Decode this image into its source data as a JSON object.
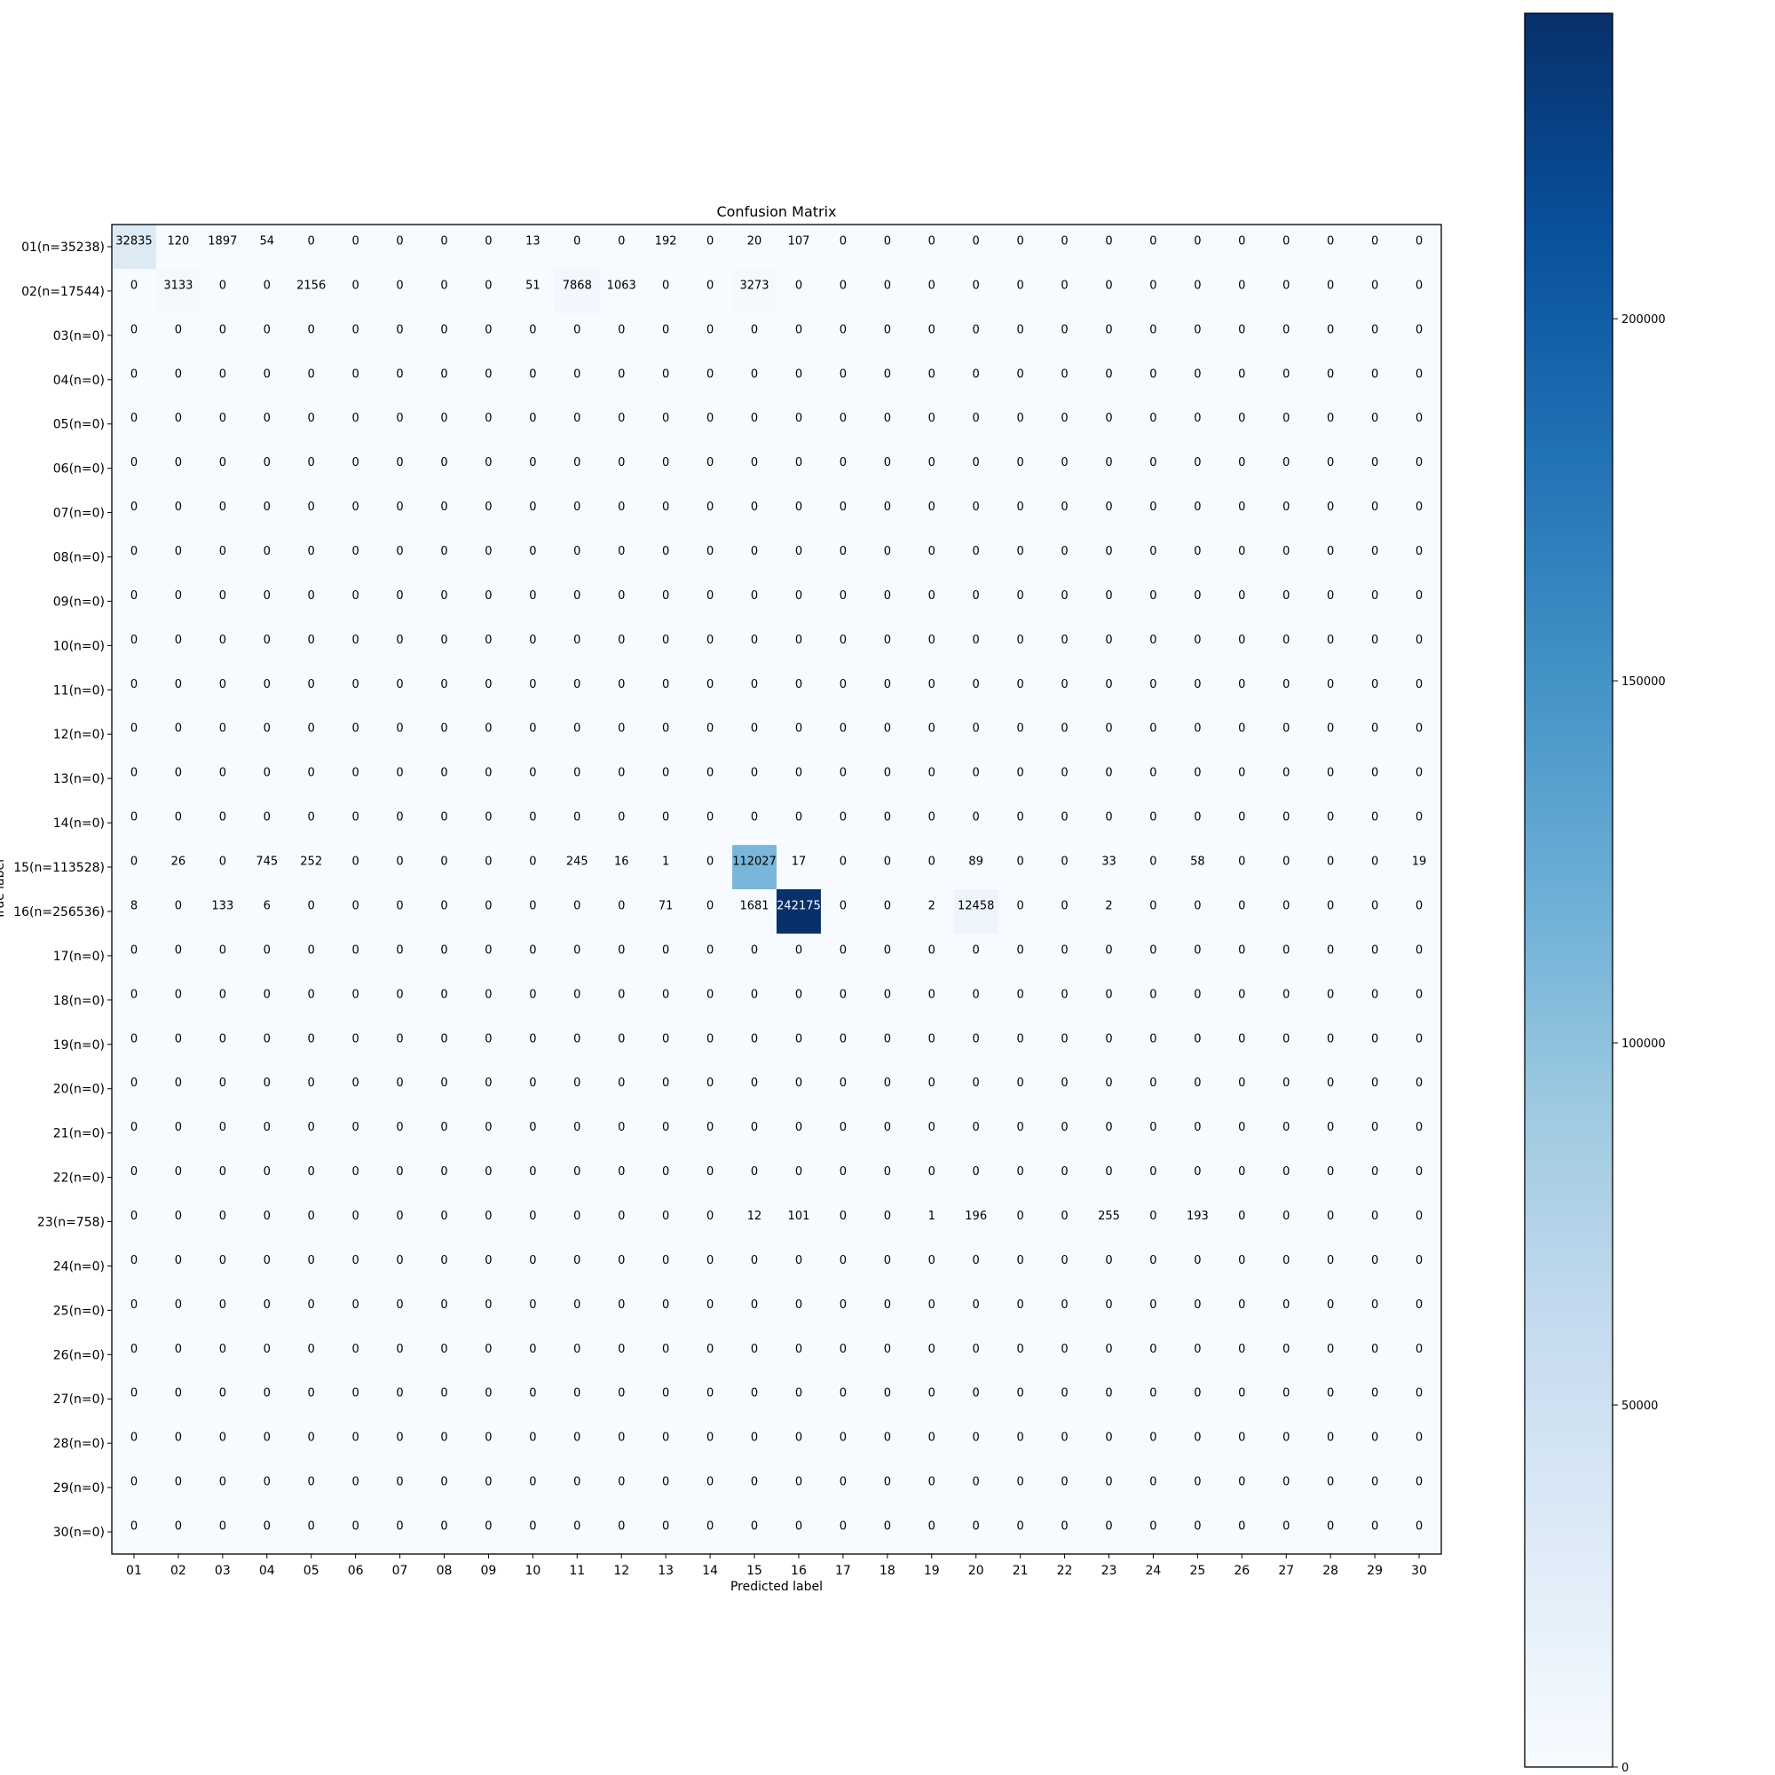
{
  "chart_data": {
    "type": "heatmap",
    "title": "Confusion Matrix",
    "xlabel": "Predicted label",
    "ylabel": "True label",
    "row_labels": [
      "01(n=35238)",
      "02(n=17544)",
      "03(n=0)",
      "04(n=0)",
      "05(n=0)",
      "06(n=0)",
      "07(n=0)",
      "08(n=0)",
      "09(n=0)",
      "10(n=0)",
      "11(n=0)",
      "12(n=0)",
      "13(n=0)",
      "14(n=0)",
      "15(n=113528)",
      "16(n=256536)",
      "17(n=0)",
      "18(n=0)",
      "19(n=0)",
      "20(n=0)",
      "21(n=0)",
      "22(n=0)",
      "23(n=758)",
      "24(n=0)",
      "25(n=0)",
      "26(n=0)",
      "27(n=0)",
      "28(n=0)",
      "29(n=0)",
      "30(n=0)"
    ],
    "col_labels": [
      "01",
      "02",
      "03",
      "04",
      "05",
      "06",
      "07",
      "08",
      "09",
      "10",
      "11",
      "12",
      "13",
      "14",
      "15",
      "16",
      "17",
      "18",
      "19",
      "20",
      "21",
      "22",
      "23",
      "24",
      "25",
      "26",
      "27",
      "28",
      "29",
      "30"
    ],
    "nonzero_cells": [
      [
        0,
        0,
        32835
      ],
      [
        0,
        1,
        120
      ],
      [
        0,
        2,
        1897
      ],
      [
        0,
        3,
        54
      ],
      [
        0,
        9,
        13
      ],
      [
        0,
        12,
        192
      ],
      [
        0,
        14,
        20
      ],
      [
        0,
        15,
        107
      ],
      [
        1,
        1,
        3133
      ],
      [
        1,
        4,
        2156
      ],
      [
        1,
        9,
        51
      ],
      [
        1,
        10,
        7868
      ],
      [
        1,
        11,
        1063
      ],
      [
        1,
        14,
        3273
      ],
      [
        14,
        1,
        26
      ],
      [
        14,
        3,
        745
      ],
      [
        14,
        4,
        252
      ],
      [
        14,
        10,
        245
      ],
      [
        14,
        11,
        16
      ],
      [
        14,
        12,
        1
      ],
      [
        14,
        14,
        112027
      ],
      [
        14,
        15,
        17
      ],
      [
        14,
        19,
        89
      ],
      [
        14,
        22,
        33
      ],
      [
        14,
        24,
        58
      ],
      [
        14,
        29,
        19
      ],
      [
        15,
        0,
        8
      ],
      [
        15,
        2,
        133
      ],
      [
        15,
        3,
        6
      ],
      [
        15,
        12,
        71
      ],
      [
        15,
        14,
        1681
      ],
      [
        15,
        15,
        242175
      ],
      [
        15,
        18,
        2
      ],
      [
        15,
        19,
        12458
      ],
      [
        15,
        22,
        2
      ],
      [
        22,
        14,
        12
      ],
      [
        22,
        15,
        101
      ],
      [
        22,
        18,
        1
      ],
      [
        22,
        19,
        196
      ],
      [
        22,
        22,
        255
      ],
      [
        22,
        24,
        193
      ]
    ],
    "colorbar": {
      "colormap": "Blues",
      "range": [
        0,
        242175
      ],
      "ticks": [
        0,
        50000,
        100000,
        150000,
        200000
      ],
      "tick_labels": [
        "0",
        "50000",
        "100000",
        "150000",
        "200000"
      ]
    },
    "grid": false
  }
}
